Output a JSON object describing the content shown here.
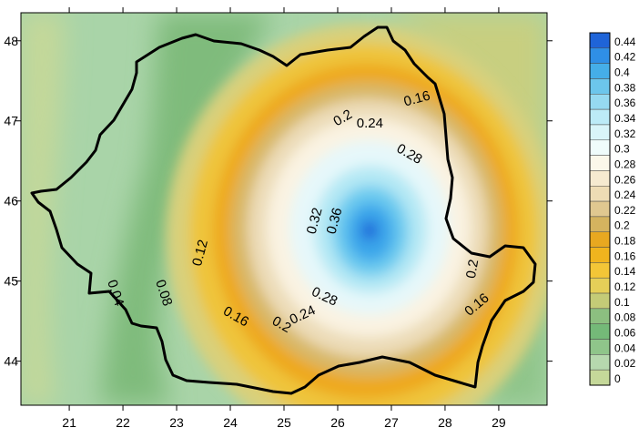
{
  "chart_data": {
    "type": "heatmap",
    "title": "",
    "xlabel": "",
    "ylabel": "",
    "xlim": [
      20.1,
      29.9
    ],
    "ylim": [
      43.45,
      48.35
    ],
    "x_ticks": [
      "21",
      "22",
      "23",
      "24",
      "25",
      "26",
      "27",
      "28",
      "29"
    ],
    "y_ticks": [
      "44",
      "45",
      "46",
      "47",
      "48"
    ],
    "peak": {
      "lon": 26.6,
      "lat": 45.65,
      "value": 0.44
    },
    "colorbar": {
      "levels": [
        "0.44",
        "0.42",
        "0.4",
        "0.38",
        "0.36",
        "0.34",
        "0.32",
        "0.3",
        "0.28",
        "0.26",
        "0.24",
        "0.22",
        "0.2",
        "0.18",
        "0.16",
        "0.14",
        "0.12",
        "0.1",
        "0.08",
        "0.06",
        "0.04",
        "0.02",
        "0"
      ],
      "colors": [
        "#1f64d8",
        "#2f8fe6",
        "#45aee8",
        "#6cc6ec",
        "#96daf1",
        "#bcebf7",
        "#d9f5f9",
        "#effcfb",
        "#fbf8ea",
        "#f6ead0",
        "#eedcb4",
        "#e0c890",
        "#d4b35f",
        "#e8a820",
        "#f0b41e",
        "#f3c637",
        "#e5cf58",
        "#c4cb77",
        "#8cbf80",
        "#74b978",
        "#8fc58a",
        "#b6d8ae",
        "#c5d899"
      ]
    },
    "contour_labels": [
      {
        "text": "0.16",
        "lon": 27.48,
        "lat": 47.27,
        "angle": -15
      },
      {
        "text": "0.2",
        "lon": 26.1,
        "lat": 47.03,
        "angle": -30
      },
      {
        "text": "0.24",
        "lon": 26.6,
        "lat": 46.96,
        "angle": 0
      },
      {
        "text": "0.28",
        "lon": 27.33,
        "lat": 46.58,
        "angle": 30
      },
      {
        "text": "0.32",
        "lon": 25.58,
        "lat": 45.75,
        "angle": -75
      },
      {
        "text": "0.36",
        "lon": 25.95,
        "lat": 45.75,
        "angle": -75
      },
      {
        "text": "0.12",
        "lon": 23.45,
        "lat": 45.35,
        "angle": -75
      },
      {
        "text": "0.2",
        "lon": 28.52,
        "lat": 45.15,
        "angle": -80
      },
      {
        "text": "0.04",
        "lon": 21.85,
        "lat": 44.85,
        "angle": 72
      },
      {
        "text": "0.08",
        "lon": 22.75,
        "lat": 44.85,
        "angle": 72
      },
      {
        "text": "0.28",
        "lon": 25.75,
        "lat": 44.8,
        "angle": 25
      },
      {
        "text": "0.24",
        "lon": 25.35,
        "lat": 44.57,
        "angle": -25
      },
      {
        "text": "0.16",
        "lon": 24.1,
        "lat": 44.55,
        "angle": 30
      },
      {
        "text": "0.2",
        "lon": 24.95,
        "lat": 44.45,
        "angle": 30
      },
      {
        "text": "0.16",
        "lon": 28.6,
        "lat": 44.7,
        "angle": -40
      }
    ]
  }
}
